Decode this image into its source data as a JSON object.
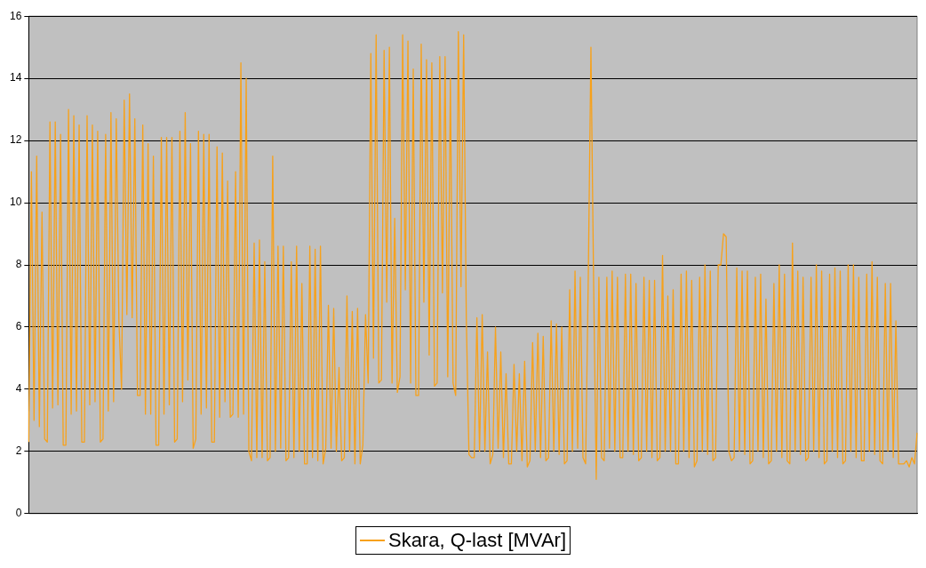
{
  "chart_data": {
    "type": "line",
    "categories": [
      null,
      null,
      null,
      null,
      null,
      null,
      null,
      null,
      null,
      null,
      null,
      null,
      null,
      null,
      null,
      null,
      null,
      null,
      null,
      null,
      null,
      null,
      null,
      null,
      null,
      null,
      null,
      null,
      null,
      null,
      null,
      null,
      null,
      null,
      null,
      null,
      null,
      null,
      null,
      null,
      null,
      null,
      null,
      null,
      null,
      null,
      null,
      null,
      null,
      null,
      null,
      null,
      null,
      null,
      null,
      null,
      null,
      null,
      null,
      null,
      null,
      null,
      null,
      null,
      null,
      null,
      null,
      null,
      null,
      null,
      null,
      null,
      null,
      null,
      null,
      null,
      null,
      null,
      null,
      null,
      null,
      null,
      null,
      null,
      null,
      null,
      null,
      null,
      null,
      null,
      null,
      null,
      null,
      null,
      null,
      null,
      null,
      null,
      null,
      null,
      null,
      null,
      null,
      null,
      null,
      null,
      null,
      null,
      null,
      null,
      null,
      null,
      null,
      null,
      null,
      null,
      null,
      null,
      null,
      null,
      null,
      null,
      null,
      null,
      null,
      null,
      null,
      null,
      null,
      null,
      null,
      null,
      null,
      null,
      null,
      null,
      null,
      null,
      null,
      null,
      null,
      null,
      null,
      null,
      null,
      null,
      null,
      null,
      null,
      null,
      null,
      null,
      null,
      null,
      null,
      null,
      null,
      null,
      null,
      null,
      null,
      null,
      null,
      null,
      null,
      null,
      null,
      null,
      null,
      null,
      null,
      null,
      null,
      null,
      null,
      null,
      null,
      null,
      null,
      null,
      null,
      null,
      null,
      null,
      null,
      null,
      null,
      null,
      null,
      null,
      null,
      null,
      null,
      null,
      null,
      null,
      null,
      null,
      null,
      null,
      null,
      null,
      null,
      null,
      null,
      null,
      null,
      null,
      null,
      null,
      null,
      null,
      null,
      null,
      null,
      null,
      null,
      null,
      null,
      null,
      null,
      null,
      null,
      null,
      null,
      null,
      null,
      null,
      null,
      null,
      null,
      null,
      null,
      null,
      null,
      null,
      null,
      null,
      null,
      null,
      null,
      null,
      null,
      null,
      null,
      null,
      null,
      null,
      null,
      null,
      null,
      null,
      null,
      null,
      null,
      null,
      null,
      null,
      null,
      null,
      null,
      null,
      null,
      null,
      null,
      null,
      null,
      null,
      null,
      null,
      null,
      null,
      null,
      null,
      null,
      null,
      null,
      null,
      null,
      null,
      null,
      null,
      null,
      null,
      null,
      null,
      null,
      null,
      null,
      null,
      null,
      null,
      null,
      null,
      null,
      null,
      null,
      null,
      null,
      null,
      null,
      null,
      null,
      null,
      null,
      null,
      null,
      null,
      null,
      null,
      null,
      null,
      null,
      null,
      null,
      null,
      null,
      null,
      null,
      null,
      null,
      null,
      null,
      null,
      null,
      null,
      null,
      null,
      null,
      null,
      null,
      null,
      null,
      null,
      null,
      null
    ],
    "series": [
      {
        "name": "Skara, Q-last [MVAr]",
        "color": "#f7a11a",
        "values": [
          2.3,
          11.0,
          3.0,
          11.5,
          2.8,
          9.7,
          2.4,
          2.3,
          12.6,
          3.4,
          12.6,
          3.5,
          12.2,
          2.2,
          2.2,
          13.0,
          3.2,
          12.8,
          3.3,
          12.5,
          2.3,
          2.3,
          12.8,
          3.5,
          12.5,
          3.6,
          12.3,
          2.3,
          2.4,
          12.2,
          3.3,
          12.9,
          3.6,
          12.7,
          6.2,
          4.0,
          13.3,
          6.4,
          13.5,
          6.3,
          12.7,
          3.8,
          3.8,
          12.5,
          3.2,
          11.9,
          3.2,
          11.5,
          2.2,
          2.2,
          12.1,
          3.2,
          12.1,
          3.5,
          12.1,
          2.3,
          2.4,
          12.3,
          3.6,
          12.9,
          4.3,
          11.9,
          2.1,
          2.4,
          12.3,
          3.2,
          12.2,
          3.4,
          12.2,
          2.3,
          2.3,
          11.8,
          3.1,
          11.6,
          3.6,
          10.7,
          3.1,
          3.2,
          11.0,
          3.1,
          14.5,
          3.2,
          14.0,
          2.0,
          1.7,
          8.7,
          1.8,
          8.8,
          1.8,
          8.1,
          1.7,
          1.8,
          11.5,
          2.0,
          8.6,
          2.1,
          8.6,
          1.7,
          1.8,
          8.1,
          1.8,
          8.6,
          2.0,
          7.4,
          1.6,
          1.6,
          8.6,
          1.8,
          8.5,
          1.7,
          8.6,
          1.6,
          2.1,
          6.7,
          2.1,
          6.6,
          2.0,
          4.7,
          1.7,
          1.8,
          7.0,
          2.0,
          6.5,
          1.6,
          6.6,
          1.6,
          2.2,
          6.4,
          4.2,
          14.8,
          5.0,
          15.4,
          4.2,
          4.3,
          14.9,
          6.8,
          15.0,
          4.2,
          9.5,
          3.9,
          4.4,
          15.4,
          7.2,
          15.2,
          4.2,
          14.3,
          3.8,
          3.8,
          15.1,
          6.8,
          14.6,
          5.1,
          14.5,
          4.1,
          4.2,
          14.7,
          7.1,
          14.7,
          4.4,
          14.0,
          4.2,
          3.8,
          15.5,
          7.3,
          15.4,
          6.3,
          1.9,
          1.8,
          1.8,
          6.3,
          2.0,
          6.4,
          2.0,
          5.2,
          1.6,
          1.9,
          6.0,
          2.1,
          5.2,
          1.8,
          4.5,
          1.6,
          1.6,
          4.8,
          2.0,
          4.5,
          1.7,
          4.9,
          1.5,
          1.7,
          5.5,
          2.0,
          5.8,
          1.8,
          5.7,
          1.7,
          1.8,
          6.2,
          2.0,
          6.1,
          1.9,
          6.0,
          1.6,
          1.7,
          7.2,
          2.0,
          7.8,
          2.1,
          7.6,
          1.8,
          1.6,
          7.6,
          15.0,
          7.5,
          1.1,
          7.6,
          1.8,
          1.7,
          7.6,
          2.1,
          7.8,
          2.0,
          7.6,
          1.8,
          1.8,
          7.7,
          2.0,
          7.7,
          1.9,
          7.4,
          1.7,
          1.8,
          7.6,
          2.0,
          7.5,
          1.8,
          7.5,
          1.7,
          1.8,
          8.3,
          2.0,
          7.0,
          2.0,
          7.2,
          1.6,
          1.6,
          7.7,
          2.0,
          7.8,
          1.8,
          7.5,
          1.5,
          1.7,
          7.6,
          2.0,
          8.0,
          1.9,
          7.8,
          1.7,
          1.8,
          8.0,
          8.0,
          9.0,
          8.9,
          2.0,
          1.7,
          1.8,
          7.9,
          2.0,
          7.8,
          1.9,
          7.8,
          1.6,
          1.7,
          7.6,
          2.0,
          7.7,
          1.8,
          6.9,
          1.6,
          1.7,
          7.4,
          2.0,
          8.0,
          1.8,
          7.7,
          1.7,
          1.6,
          8.7,
          2.0,
          7.8,
          1.9,
          7.6,
          1.7,
          1.8,
          7.6,
          2.0,
          8.0,
          1.8,
          7.8,
          1.6,
          1.7,
          7.7,
          2.0,
          7.9,
          1.8,
          7.8,
          1.6,
          1.7,
          8.0,
          2.0,
          8.0,
          1.8,
          7.6,
          1.7,
          1.7,
          7.7,
          2.0,
          8.1,
          1.9,
          7.6,
          1.7,
          1.6,
          7.4,
          2.0,
          7.4,
          1.8,
          6.2,
          1.6,
          1.6,
          1.6,
          1.7,
          1.5,
          1.8,
          1.6,
          2.6
        ]
      }
    ],
    "ylim": [
      0,
      16
    ],
    "yticks": [
      0,
      2,
      4,
      6,
      8,
      10,
      12,
      14,
      16
    ],
    "grid": "y",
    "legend": "bottom",
    "tick_labels": "y",
    "marker": "none",
    "line_style": "solid"
  }
}
